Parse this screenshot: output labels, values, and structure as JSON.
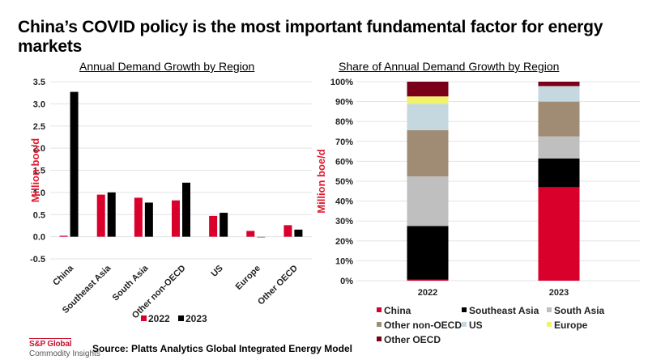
{
  "page": {
    "title": "China’s COVID policy is the most important fundamental factor for energy markets",
    "source": "Source: Platts Analytics Global Integrated Energy Model",
    "logo_line1": "S&P Global",
    "logo_line2": "Commodity Insights"
  },
  "chart_data": [
    {
      "type": "bar",
      "title": "Annual Demand  Growth by Region",
      "xlabel": "",
      "ylabel": "Million boe/d",
      "ylim": [
        -0.5,
        3.5
      ],
      "yticks": [
        -0.5,
        0.0,
        0.5,
        1.0,
        1.5,
        2.0,
        2.5,
        3.0,
        3.5
      ],
      "ytick_labels": [
        "-0.5",
        "0.0",
        "0.5",
        "1.0",
        "1.5",
        "2.0",
        "2.5",
        "3.0",
        "3.5"
      ],
      "grid": true,
      "legend_position": "bottom",
      "categories": [
        "China",
        "Southeast Asia",
        "South Asia",
        "Other non-OECD",
        "US",
        "Europe",
        "Other OECD"
      ],
      "series": [
        {
          "name": "2022",
          "color": "#d9002b",
          "values": [
            0.02,
            0.95,
            0.88,
            0.82,
            0.47,
            0.13,
            0.26
          ]
        },
        {
          "name": "2023",
          "color": "#000000",
          "values": [
            3.27,
            1.0,
            0.77,
            1.22,
            0.54,
            -0.01,
            0.16
          ]
        }
      ]
    },
    {
      "type": "bar",
      "stacked": true,
      "title": "Share of Annual  Demand Growth by Region",
      "xlabel": "",
      "ylabel": "Million boe/d",
      "ylim": [
        0,
        100
      ],
      "yticks": [
        0,
        10,
        20,
        30,
        40,
        50,
        60,
        70,
        80,
        90,
        100
      ],
      "ytick_labels": [
        "0%",
        "10%",
        "20%",
        "30%",
        "40%",
        "50%",
        "60%",
        "70%",
        "80%",
        "90%",
        "100%"
      ],
      "grid": true,
      "legend_position": "bottom",
      "categories": [
        "2022",
        "2023"
      ],
      "series": [
        {
          "name": "China",
          "color": "#d9002b",
          "values": [
            0.6,
            47.0
          ]
        },
        {
          "name": "Southeast Asia",
          "color": "#000000",
          "values": [
            26.9,
            14.4
          ]
        },
        {
          "name": "South Asia",
          "color": "#bfbfbf",
          "values": [
            24.9,
            11.1
          ]
        },
        {
          "name": "Other non-OECD",
          "color": "#a08c74",
          "values": [
            23.2,
            17.5
          ]
        },
        {
          "name": "US",
          "color": "#c5d8e0",
          "values": [
            13.3,
            7.8
          ]
        },
        {
          "name": "Europe",
          "color": "#f2f26a",
          "values": [
            3.7,
            0.0
          ]
        },
        {
          "name": "Other OECD",
          "color": "#7a0019",
          "values": [
            7.4,
            2.2
          ]
        }
      ]
    }
  ]
}
